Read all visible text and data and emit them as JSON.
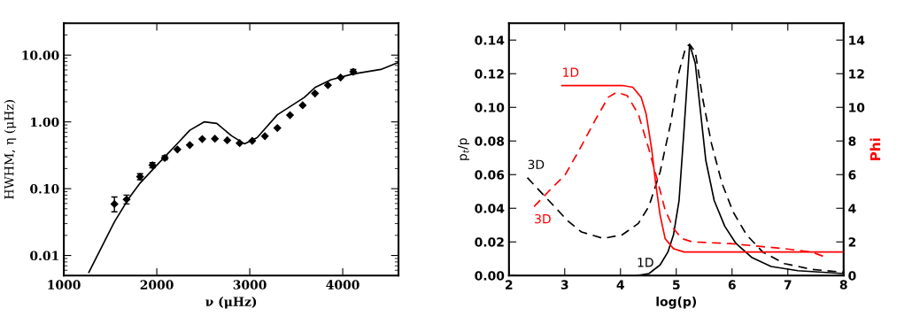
{
  "chart_data": [
    {
      "type": "scatter",
      "xlabel": "ν (μHz)",
      "ylabel": "HWHM, η (μHz)",
      "log": "y",
      "xlim": [
        1000,
        4600
      ],
      "xticks": [
        1000,
        2000,
        3000,
        4000
      ],
      "ylim": [
        0.005,
        30
      ],
      "yticks": [
        {
          "value": 0.01,
          "label": "0.01"
        },
        {
          "value": 0.1,
          "label": "0.10"
        },
        {
          "value": 1,
          "label": "1.00"
        },
        {
          "value": 10,
          "label": "10.00"
        }
      ],
      "grid": false,
      "legend": false,
      "series": [
        {
          "type": "scatter",
          "color": "#000000",
          "marker": "diamond",
          "x": [
            1544,
            1675,
            1820,
            1953,
            2086,
            2222,
            2355,
            2489,
            2625,
            2758,
            2891,
            3027,
            3163,
            3297,
            3433,
            3569,
            3702,
            3841,
            3977,
            4113
          ],
          "values": [
            0.059,
            0.069,
            0.151,
            0.225,
            0.288,
            0.387,
            0.45,
            0.553,
            0.56,
            0.53,
            0.48,
            0.52,
            0.61,
            0.81,
            1.26,
            1.77,
            2.66,
            3.54,
            4.62,
            5.63
          ],
          "errors": [
            [
              0.045,
              0.075
            ],
            [
              0.059,
              0.08
            ],
            [
              0.136,
              0.167
            ],
            [
              0.205,
              0.245
            ],
            [
              0.27,
              0.31
            ],
            null,
            null,
            null,
            null,
            null,
            null,
            null,
            null,
            null,
            null,
            null,
            null,
            null,
            null,
            [
              5.2,
              6.1
            ]
          ]
        },
        {
          "type": "line",
          "color": "#000000",
          "marker": "none",
          "line_style": "solid",
          "x": [
            1269,
            1544,
            1704,
            1820,
            1993,
            2225,
            2355,
            2509,
            2645,
            2804,
            2943,
            3079,
            3297,
            3441,
            3586,
            3702,
            3876,
            4107,
            4411,
            4591
          ],
          "values": [
            0.0056,
            0.0318,
            0.0736,
            0.121,
            0.219,
            0.48,
            0.75,
            1.0,
            0.95,
            0.62,
            0.47,
            0.58,
            1.28,
            1.72,
            2.32,
            3.27,
            4.28,
            5.21,
            6.1,
            7.7
          ]
        }
      ]
    },
    {
      "type": "line",
      "xlabel": "log(p)",
      "ylabel": "p$_{t}$/p",
      "y2label": "Phi",
      "xlim": [
        2,
        8
      ],
      "xticks": [
        2,
        3,
        4,
        5,
        6,
        7,
        8
      ],
      "ylim": [
        0,
        0.15
      ],
      "yticks": [
        {
          "value": 0,
          "label": "0.00"
        },
        {
          "value": 0.02,
          "label": "0.02"
        },
        {
          "value": 0.04,
          "label": "0.04"
        },
        {
          "value": 0.06,
          "label": "0.06"
        },
        {
          "value": 0.08,
          "label": "0.08"
        },
        {
          "value": 0.1,
          "label": "0.10"
        },
        {
          "value": 0.12,
          "label": "0.12"
        },
        {
          "value": 0.14,
          "label": "0.14"
        }
      ],
      "y2lim": [
        0,
        15
      ],
      "y2ticks": [
        0,
        2,
        4,
        6,
        8,
        10,
        12,
        14
      ],
      "grid": false,
      "legend": false,
      "series": [
        {
          "name": "1D",
          "color": "#000000",
          "line_style": "solid",
          "x": [
            4.29,
            4.51,
            4.71,
            4.85,
            4.95,
            5.05,
            5.14,
            5.24,
            5.34,
            5.44,
            5.53,
            5.68,
            5.87,
            6.07,
            6.36,
            6.7,
            7.18,
            8
          ],
          "values": [
            0,
            0.0012,
            0.0063,
            0.014,
            0.0242,
            0.0446,
            0.0871,
            0.1374,
            0.1263,
            0.0957,
            0.0684,
            0.0446,
            0.0293,
            0.0191,
            0.0106,
            0.0054,
            0.0029,
            0.0012
          ]
        },
        {
          "name": "3D",
          "color": "#000000",
          "line_style": "dashed",
          "x": [
            2.33,
            2.57,
            2.81,
            3.05,
            3.3,
            3.69,
            4.03,
            4.32,
            4.51,
            4.71,
            4.9,
            5.05,
            5.17,
            5.24,
            5.34,
            5.48,
            5.63,
            5.82,
            6.02,
            6.26,
            6.55,
            6.94,
            7.43,
            8
          ],
          "values": [
            0.0582,
            0.0497,
            0.0412,
            0.0327,
            0.0259,
            0.0221,
            0.0242,
            0.031,
            0.0412,
            0.0616,
            0.0906,
            0.1212,
            0.1357,
            0.1374,
            0.1331,
            0.1042,
            0.0786,
            0.0548,
            0.0378,
            0.0242,
            0.014,
            0.0071,
            0.0037,
            0.002
          ]
        },
        {
          "name": "1D",
          "color": "#ff0000",
          "line_style": "solid",
          "axis": "y2",
          "x": [
            2.95,
            4.03,
            4.22,
            4.37,
            4.46,
            4.56,
            4.63,
            4.71,
            4.8,
            4.95,
            5.14,
            8
          ],
          "values": [
            11.3,
            11.3,
            11.2,
            10.6,
            9.6,
            7.5,
            5.5,
            3.6,
            2.2,
            1.6,
            1.4,
            1.4
          ]
        },
        {
          "name": "3D",
          "color": "#ff0000",
          "line_style": "dashed",
          "axis": "y2",
          "x": [
            2.45,
            2.71,
            3.01,
            3.25,
            3.54,
            3.78,
            3.93,
            4.12,
            4.32,
            4.51,
            4.66,
            4.8,
            4.95,
            5.1,
            5.29,
            5.97,
            6.94,
            7.43,
            7.67
          ],
          "values": [
            4.1,
            5.0,
            6.0,
            7.4,
            9.2,
            10.6,
            10.9,
            10.7,
            9.6,
            7.5,
            5.7,
            3.9,
            2.8,
            2.2,
            2.0,
            1.9,
            1.6,
            1.4,
            1.1
          ]
        }
      ]
    }
  ]
}
